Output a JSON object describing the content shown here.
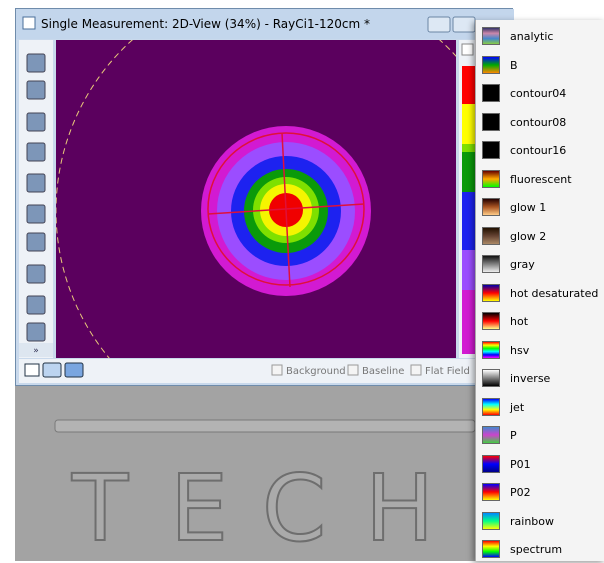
{
  "window": {
    "title": "Single Measurement: 2D-View (34%) - RayCi1-120cm *",
    "toolbar_more": "»",
    "checkboxes": [
      "Background",
      "Baseline",
      "Flat Field"
    ]
  },
  "background_letters": [
    "T",
    "E",
    "C",
    "H"
  ],
  "colormaps": [
    "analytic",
    "B",
    "contour04",
    "contour08",
    "contour16",
    "fluorescent",
    "glow 1",
    "glow 2",
    "gray",
    "hot desaturated",
    "hot",
    "hsv",
    "inverse",
    "jet",
    "P",
    "P01",
    "P02",
    "rainbow",
    "spectrum"
  ]
}
